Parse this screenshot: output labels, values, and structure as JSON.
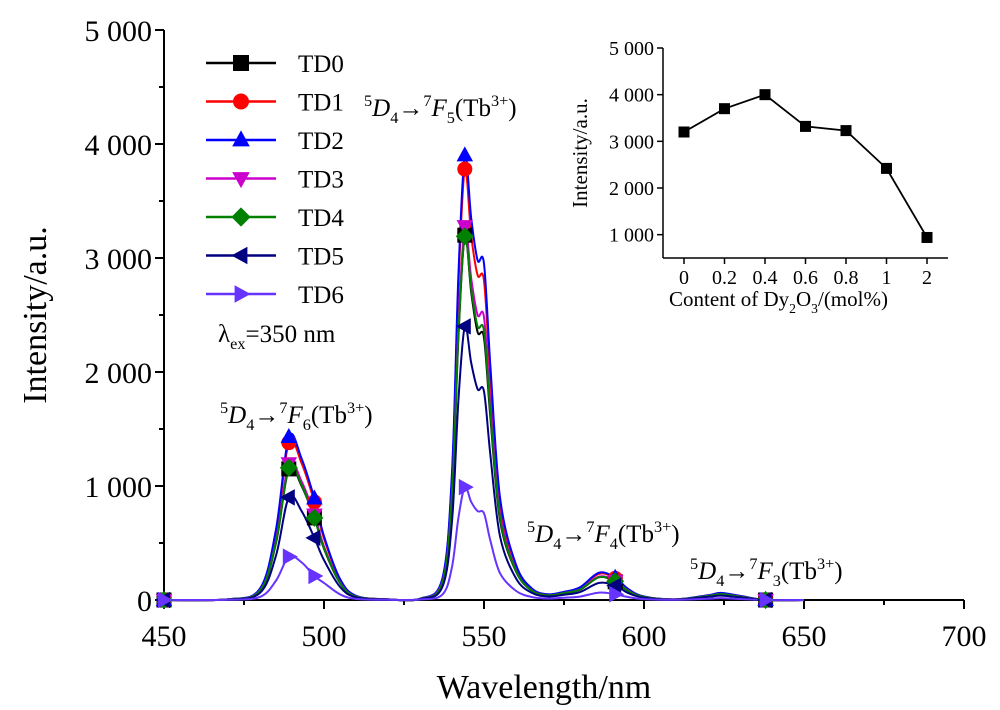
{
  "chart_data": [
    {
      "type": "line",
      "xlabel": "Wavelength/nm",
      "ylabel": "Intensity/a.u.",
      "xlim": [
        450,
        700
      ],
      "ylim": [
        0,
        5000
      ],
      "x_ticks": [
        450,
        500,
        550,
        600,
        650,
        700
      ],
      "y_ticks": [
        0,
        1000,
        2000,
        3000,
        4000,
        5000
      ],
      "x_tick_labels": [
        "450",
        "500",
        "550",
        "600",
        "650",
        "700"
      ],
      "y_tick_labels": [
        "0",
        "1 000",
        "2 000",
        "3 000",
        "4 000",
        "5 000"
      ],
      "excitation_label": "λex=350 nm",
      "legend_position": "top-left",
      "annotations": [
        {
          "text": "5D4→7F6(Tb3+)",
          "x": 488,
          "y": 1630
        },
        {
          "text": "5D4→7F5(Tb3+)",
          "x": 544,
          "y": 4350
        },
        {
          "text": "5D4→7F4(Tb3+)",
          "x": 588,
          "y": 580
        },
        {
          "text": "5D4→7F3(Tb3+)",
          "x": 637,
          "y": 240
        }
      ],
      "series": [
        {
          "name": "TD0",
          "color": "#000000",
          "marker": "square",
          "x": [
            450,
            470,
            480,
            485,
            489,
            493,
            497,
            500,
            505,
            510,
            520,
            530,
            537,
            540,
            542,
            544,
            546,
            548,
            550,
            552,
            555,
            560,
            565,
            570,
            575,
            580,
            586,
            591,
            595,
            600,
            610,
            620,
            624,
            630,
            638,
            650
          ],
          "y": [
            0,
            5,
            80,
            500,
            1150,
            1000,
            720,
            450,
            150,
            30,
            5,
            10,
            150,
            900,
            2300,
            3200,
            2700,
            2350,
            2300,
            1600,
            700,
            250,
            80,
            40,
            60,
            90,
            200,
            160,
            80,
            25,
            5,
            35,
            50,
            30,
            0,
            0
          ]
        },
        {
          "name": "TD1",
          "color": "#ff0000",
          "marker": "circle",
          "x": [
            450,
            470,
            480,
            485,
            489,
            493,
            497,
            500,
            505,
            510,
            520,
            530,
            537,
            540,
            542,
            544,
            546,
            548,
            550,
            552,
            555,
            560,
            565,
            570,
            575,
            580,
            586,
            591,
            595,
            600,
            610,
            620,
            624,
            630,
            638,
            650
          ],
          "y": [
            0,
            6,
            95,
            600,
            1380,
            1200,
            860,
            540,
            180,
            36,
            6,
            12,
            180,
            1080,
            2760,
            3780,
            3200,
            2850,
            2800,
            1950,
            850,
            300,
            95,
            48,
            70,
            110,
            230,
            190,
            95,
            30,
            6,
            40,
            60,
            35,
            0,
            0
          ]
        },
        {
          "name": "TD2",
          "color": "#0000ff",
          "marker": "triangle-up",
          "x": [
            450,
            470,
            480,
            485,
            489,
            493,
            497,
            500,
            505,
            510,
            520,
            530,
            537,
            540,
            542,
            544,
            546,
            548,
            550,
            552,
            555,
            560,
            565,
            570,
            575,
            580,
            586,
            591,
            595,
            600,
            610,
            620,
            624,
            630,
            638,
            650
          ],
          "y": [
            0,
            6,
            100,
            620,
            1430,
            1240,
            890,
            560,
            185,
            37,
            6,
            12,
            190,
            1120,
            2850,
            3900,
            3350,
            2980,
            2950,
            2050,
            900,
            310,
            100,
            50,
            72,
            112,
            240,
            195,
            98,
            31,
            6,
            42,
            62,
            36,
            0,
            0
          ]
        },
        {
          "name": "TD3",
          "color": "#cc00cc",
          "marker": "triangle-down",
          "x": [
            450,
            470,
            480,
            485,
            489,
            493,
            497,
            500,
            505,
            510,
            520,
            530,
            537,
            540,
            542,
            544,
            546,
            548,
            550,
            552,
            555,
            560,
            565,
            570,
            575,
            580,
            586,
            591,
            595,
            600,
            610,
            620,
            624,
            630,
            638,
            650
          ],
          "y": [
            0,
            5,
            84,
            520,
            1200,
            1040,
            750,
            470,
            155,
            31,
            5,
            10,
            160,
            940,
            2400,
            3280,
            2820,
            2500,
            2480,
            1720,
            760,
            260,
            84,
            42,
            62,
            94,
            205,
            168,
            84,
            26,
            5,
            36,
            52,
            31,
            0,
            0
          ]
        },
        {
          "name": "TD4",
          "color": "#008000",
          "marker": "diamond",
          "x": [
            450,
            470,
            480,
            485,
            489,
            493,
            497,
            500,
            505,
            510,
            520,
            530,
            537,
            540,
            542,
            544,
            546,
            548,
            550,
            552,
            555,
            560,
            565,
            570,
            575,
            580,
            586,
            591,
            595,
            600,
            610,
            620,
            624,
            630,
            638,
            650
          ],
          "y": [
            0,
            5,
            82,
            510,
            1160,
            1010,
            720,
            455,
            150,
            30,
            5,
            10,
            152,
            920,
            2330,
            3190,
            2730,
            2400,
            2360,
            1640,
            720,
            255,
            82,
            41,
            61,
            92,
            200,
            165,
            82,
            26,
            5,
            35,
            51,
            30,
            0,
            0
          ]
        },
        {
          "name": "TD5",
          "color": "#000080",
          "marker": "triangle-left",
          "x": [
            450,
            470,
            480,
            485,
            489,
            493,
            497,
            500,
            505,
            510,
            520,
            530,
            537,
            540,
            542,
            544,
            546,
            548,
            550,
            552,
            555,
            560,
            565,
            570,
            575,
            580,
            586,
            591,
            595,
            600,
            610,
            620,
            624,
            630,
            638,
            650
          ],
          "y": [
            0,
            4,
            62,
            390,
            900,
            780,
            545,
            350,
            115,
            23,
            4,
            8,
            115,
            690,
            1750,
            2400,
            2080,
            1850,
            1830,
            1270,
            560,
            190,
            62,
            31,
            46,
            70,
            150,
            125,
            62,
            20,
            4,
            27,
            38,
            23,
            0,
            0
          ]
        },
        {
          "name": "TD6",
          "color": "#6633ff",
          "marker": "triangle-right",
          "x": [
            450,
            470,
            480,
            485,
            489,
            493,
            497,
            500,
            505,
            510,
            520,
            530,
            537,
            540,
            542,
            544,
            546,
            548,
            550,
            552,
            555,
            560,
            565,
            570,
            575,
            580,
            586,
            591,
            595,
            600,
            610,
            620,
            624,
            630,
            638,
            650
          ],
          "y": [
            0,
            2,
            27,
            170,
            380,
            330,
            210,
            150,
            50,
            10,
            2,
            4,
            48,
            290,
            720,
            990,
            860,
            780,
            760,
            520,
            235,
            80,
            26,
            13,
            20,
            30,
            65,
            50,
            26,
            8,
            2,
            11,
            16,
            9,
            0,
            0
          ]
        }
      ],
      "marker_positions": {
        "TD0": [
          [
            450,
            0
          ],
          [
            489,
            1150
          ],
          [
            497,
            720
          ],
          [
            544,
            3200
          ],
          [
            591,
            160
          ],
          [
            638,
            0
          ]
        ],
        "TD1": [
          [
            450,
            0
          ],
          [
            489,
            1380
          ],
          [
            497,
            860
          ],
          [
            544,
            3780
          ],
          [
            591,
            190
          ],
          [
            638,
            0
          ]
        ],
        "TD2": [
          [
            450,
            0
          ],
          [
            489,
            1430
          ],
          [
            497,
            890
          ],
          [
            544,
            3900
          ],
          [
            591,
            195
          ],
          [
            638,
            0
          ]
        ],
        "TD3": [
          [
            450,
            0
          ],
          [
            489,
            1200
          ],
          [
            497,
            750
          ],
          [
            544,
            3280
          ],
          [
            591,
            168
          ],
          [
            638,
            0
          ]
        ],
        "TD4": [
          [
            450,
            0
          ],
          [
            489,
            1160
          ],
          [
            497,
            720
          ],
          [
            544,
            3190
          ],
          [
            591,
            165
          ],
          [
            638,
            0
          ]
        ],
        "TD5": [
          [
            450,
            0
          ],
          [
            489,
            900
          ],
          [
            497,
            545
          ],
          [
            544,
            2400
          ],
          [
            591,
            125
          ],
          [
            638,
            0
          ]
        ],
        "TD6": [
          [
            450,
            0
          ],
          [
            489,
            380
          ],
          [
            497,
            210
          ],
          [
            544,
            990
          ],
          [
            591,
            50
          ],
          [
            638,
            0
          ]
        ]
      }
    },
    {
      "type": "line",
      "xlabel": "Content of Dy2O3/(mol%)",
      "ylabel": "Intensity/a.u.",
      "categories": [
        "0",
        "0.2",
        "0.4",
        "0.6",
        "0.8",
        "1",
        "2"
      ],
      "values": [
        3200,
        3700,
        4000,
        3320,
        3230,
        2420,
        940
      ],
      "ylim": [
        500,
        5000
      ],
      "y_ticks": [
        1000,
        2000,
        3000,
        4000,
        5000
      ],
      "y_tick_labels": [
        "1 000",
        "2 000",
        "3 000",
        "4 000",
        "5 000"
      ],
      "color": "#000000",
      "marker": "square"
    }
  ]
}
